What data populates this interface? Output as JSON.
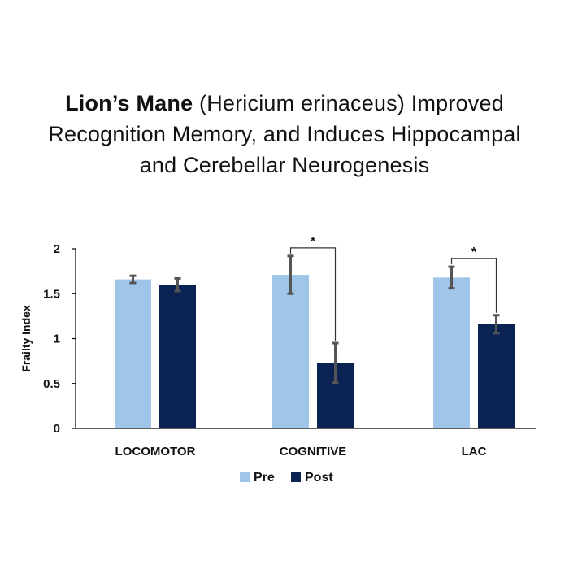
{
  "title": {
    "bold": "Lion’s Mane",
    "line1_rest": " (Hericium erinaceus) Improved",
    "line2": "Recognition Memory, and Induces Hippocampal",
    "line3": "and Cerebellar Neurogenesis"
  },
  "chart_data": {
    "type": "bar",
    "title": "",
    "xlabel": "",
    "ylabel": "Frailty Index",
    "ylim": [
      0,
      2
    ],
    "yticks": [
      "0",
      "0.5",
      "1",
      "1.5",
      "2"
    ],
    "categories": [
      "LOCOMOTOR",
      "COGNITIVE",
      "LAC"
    ],
    "series": [
      {
        "name": "Pre",
        "values": [
          1.66,
          1.71,
          1.68
        ],
        "errors": [
          0.04,
          0.21,
          0.12
        ],
        "color": "#9fc5e8"
      },
      {
        "name": "Post",
        "values": [
          1.6,
          0.73,
          1.16
        ],
        "errors": [
          0.07,
          0.22,
          0.1
        ],
        "color": "#0b2352"
      }
    ],
    "significance": [
      {
        "category": "COGNITIVE",
        "label": "*"
      },
      {
        "category": "LAC",
        "label": "*"
      }
    ],
    "grid": false,
    "legend_position": "bottom",
    "colors": {
      "axis": "#000000",
      "error_bar": "#555555"
    }
  }
}
